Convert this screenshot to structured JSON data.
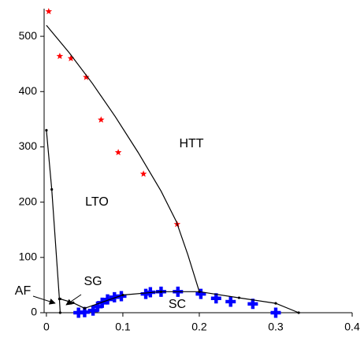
{
  "chart_data": {
    "type": "scatter",
    "xlim": [
      -0.003,
      0.4
    ],
    "ylim": [
      0,
      550
    ],
    "xticks": [
      0,
      0.1,
      0.2,
      0.3,
      0.4
    ],
    "yticks": [
      0,
      100,
      200,
      300,
      400,
      500
    ],
    "annotations": [
      "HTT",
      "LTO",
      "SG",
      "AF",
      "SC"
    ],
    "series": [
      {
        "color": "#ff0000",
        "marker": "star",
        "line": false,
        "x": [
          0.003,
          0.0175,
          0.032,
          0.052,
          0.0715,
          0.094,
          0.127,
          0.171
        ],
        "values": [
          545,
          464,
          460,
          426,
          349,
          290,
          251,
          160
        ]
      },
      {
        "color": "#0000ff",
        "marker": "plus",
        "line": false,
        "x": [
          0.042,
          0.05,
          0.061,
          0.067,
          0.073,
          0.08,
          0.089,
          0.098,
          0.13,
          0.136,
          0.15,
          0.172,
          0.202,
          0.222,
          0.241,
          0.27,
          0.3
        ],
        "values": [
          0,
          1,
          4,
          11,
          18,
          24,
          28,
          30,
          34,
          37,
          38,
          38,
          34,
          26,
          20,
          16,
          0
        ]
      },
      {
        "color": "#000000",
        "marker": "none",
        "line": true,
        "x": [
          0,
          0.03,
          0.06,
          0.09,
          0.12,
          0.15,
          0.17,
          0.185,
          0.2
        ],
        "values": [
          520,
          470,
          415,
          355,
          290,
          220,
          165,
          105,
          38
        ]
      },
      {
        "color": "#000000",
        "marker": "dot",
        "line": true,
        "x": [
          0,
          0.007,
          0.017,
          0.018
        ],
        "values": [
          330,
          223,
          25,
          0
        ]
      },
      {
        "color": "#000000",
        "marker": "dot",
        "line": true,
        "x": [
          0.018,
          0.035,
          0.05
        ],
        "values": [
          25,
          18,
          8
        ]
      },
      {
        "color": "#000000",
        "marker": "dot",
        "line": true,
        "x": [
          0.05,
          0.1,
          0.15,
          0.2,
          0.252,
          0.3,
          0.33
        ],
        "values": [
          8,
          32,
          38,
          38,
          27,
          17,
          0
        ]
      }
    ]
  }
}
